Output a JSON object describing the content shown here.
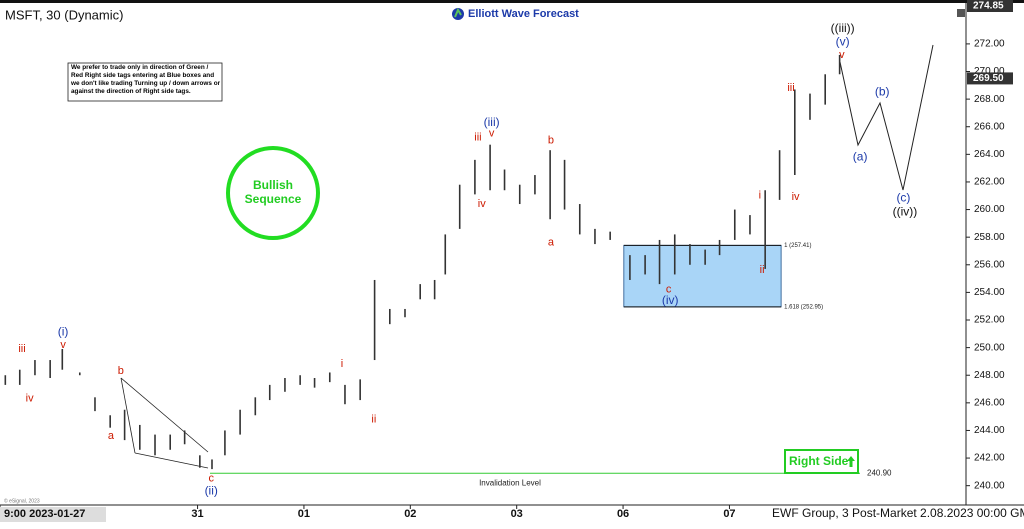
{
  "chart_data": {
    "type": "hilo",
    "title": "MSFT, 30 (Dynamic)",
    "brand": "Elliott Wave Forecast",
    "footer": "EWF Group, 3 Post-Market 2.08.2023 00:00 GMT",
    "copyright": "© eSignal, 2023",
    "note": "We prefer to trade only in direction of Green / Red Right side tags entering at Blue boxes and we don't like trading Turning up / down arrows or against the direction of Right side tags.",
    "badge": [
      "Bullish",
      "Sequence"
    ],
    "right_side": "Right Side",
    "bar_color": "#333333",
    "x": [
      0.7,
      2.6,
      4.6,
      6.6,
      8.2,
      10.5,
      12.5,
      14.5,
      16.4,
      18.4,
      20.4,
      22.4,
      24.3,
      26.3,
      27.9,
      29.6,
      31.6,
      33.6,
      35.5,
      37.5,
      39.5,
      41.4,
      43.4,
      45.4,
      47.4,
      49.3,
      51.3,
      53.3,
      55.3,
      57.2,
      58.6,
      60.5,
      62.5,
      64.5,
      66.4,
      68.4,
      70.4,
      72.4,
      74.3,
      76.3,
      78.3,
      80.3,
      82.9,
      84.9,
      86.8,
      88.8,
      90.8,
      92.8,
      94.7,
      96.7,
      98.7,
      100.7,
      102.6,
      104.6,
      106.6,
      108.6,
      110.5
    ],
    "high": [
      248.0,
      248.4,
      249.1,
      249.1,
      249.9,
      248.2,
      246.4,
      245.1,
      245.5,
      244.4,
      243.7,
      243.7,
      244.0,
      242.2,
      241.9,
      244.0,
      245.5,
      246.4,
      247.3,
      247.8,
      248.0,
      247.8,
      248.2,
      247.3,
      247.7,
      254.9,
      252.8,
      252.8,
      254.6,
      254.9,
      258.2,
      261.8,
      263.6,
      264.7,
      262.9,
      261.8,
      262.5,
      264.3,
      263.6,
      260.4,
      258.6,
      258.4,
      256.7,
      256.7,
      257.8,
      258.2,
      257.5,
      257.1,
      257.8,
      260.0,
      259.6,
      261.4,
      264.3,
      268.7,
      268.4,
      269.8,
      271.2
    ],
    "low": [
      247.3,
      247.3,
      248.0,
      247.8,
      248.4,
      248.0,
      245.4,
      244.2,
      243.3,
      242.6,
      242.2,
      242.6,
      243.0,
      241.3,
      241.2,
      242.2,
      243.7,
      245.1,
      246.2,
      246.8,
      247.3,
      247.1,
      247.5,
      245.9,
      246.2,
      249.1,
      251.7,
      252.2,
      253.5,
      253.5,
      255.3,
      258.6,
      261.1,
      261.4,
      261.4,
      260.4,
      261.1,
      259.3,
      260.0,
      258.2,
      257.5,
      257.8,
      254.9,
      255.3,
      254.6,
      255.3,
      256.0,
      256.0,
      256.7,
      257.8,
      258.2,
      255.7,
      260.7,
      262.5,
      266.5,
      267.6,
      269.8
    ],
    "xlim": [
      0,
      127
    ],
    "ylim": [
      238.6,
      274.6
    ],
    "xticks": [
      {
        "value": 0,
        "label": "9:00 2023-01-27"
      },
      {
        "value": 26,
        "label": "31"
      },
      {
        "value": 40,
        "label": "01"
      },
      {
        "value": 54,
        "label": "02"
      },
      {
        "value": 68,
        "label": "03"
      },
      {
        "value": 82,
        "label": "06"
      },
      {
        "value": 96,
        "label": "07"
      }
    ],
    "yticks": [
      {
        "value": 240,
        "label": "240.00"
      },
      {
        "value": 242,
        "label": "242.00"
      },
      {
        "value": 244,
        "label": "244.00"
      },
      {
        "value": 246,
        "label": "246.00"
      },
      {
        "value": 248,
        "label": "248.00"
      },
      {
        "value": 250,
        "label": "250.00"
      },
      {
        "value": 252,
        "label": "252.00"
      },
      {
        "value": 254,
        "label": "254.00"
      },
      {
        "value": 256,
        "label": "256.00"
      },
      {
        "value": 258,
        "label": "258.00"
      },
      {
        "value": 260,
        "label": "260.00"
      },
      {
        "value": 262,
        "label": "262.00"
      },
      {
        "value": 264,
        "label": "264.00"
      },
      {
        "value": 266,
        "label": "266.00"
      },
      {
        "value": 268,
        "label": "268.00"
      },
      {
        "value": 270,
        "label": "270.00"
      },
      {
        "value": 272,
        "label": "272.00"
      }
    ],
    "price_labels": [
      274.85,
      {
        "value": 269.5,
        "label": "269.50"
      }
    ],
    "box": {
      "xrange": [
        82.1,
        102.8
      ],
      "color": "#a9d5f7",
      "levels": [
        {
          "value": 257.41,
          "label": "1 (257.41)"
        },
        {
          "value": 252.95,
          "label": "1.618 (252.95)"
        }
      ]
    },
    "invalidation": {
      "value": 240.9,
      "label": "240.90",
      "text": "Invalidation Level",
      "color": "#33cc33"
    },
    "annotations": [
      {
        "text": "iii",
        "x": 2.9,
        "y": 249.9,
        "color": "#cc1a00"
      },
      {
        "text": "iv",
        "x": 3.9,
        "y": 246.3,
        "color": "#cc1a00"
      },
      {
        "text": "(i)",
        "x": 8.3,
        "y": 251.1,
        "color": "#1c3aa9"
      },
      {
        "text": "v",
        "x": 8.3,
        "y": 250.2,
        "color": "#cc1a00"
      },
      {
        "text": "b",
        "x": 15.9,
        "y": 248.3,
        "color": "#cc1a00"
      },
      {
        "text": "a",
        "x": 14.6,
        "y": 243.6,
        "color": "#cc1a00"
      },
      {
        "text": "c",
        "x": 27.8,
        "y": 240.5,
        "color": "#cc1a00"
      },
      {
        "text": "(ii)",
        "x": 27.8,
        "y": 239.6,
        "color": "#1c3aa9"
      },
      {
        "text": "i",
        "x": 45.0,
        "y": 248.8,
        "color": "#cc1a00"
      },
      {
        "text": "ii",
        "x": 49.2,
        "y": 244.8,
        "color": "#cc1a00"
      },
      {
        "text": "iii",
        "x": 62.9,
        "y": 265.2,
        "color": "#cc1a00"
      },
      {
        "text": "(iii)",
        "x": 64.7,
        "y": 266.3,
        "color": "#1c3aa9"
      },
      {
        "text": "v",
        "x": 64.7,
        "y": 265.5,
        "color": "#cc1a00"
      },
      {
        "text": "iv",
        "x": 63.4,
        "y": 260.4,
        "color": "#cc1a00"
      },
      {
        "text": "b",
        "x": 72.5,
        "y": 265.0,
        "color": "#cc1a00"
      },
      {
        "text": "a",
        "x": 72.5,
        "y": 257.6,
        "color": "#cc1a00"
      },
      {
        "text": "c",
        "x": 88.0,
        "y": 254.2,
        "color": "#cc1a00"
      },
      {
        "text": "(iv)",
        "x": 88.2,
        "y": 253.4,
        "color": "#1c3aa9"
      },
      {
        "text": "i",
        "x": 100.0,
        "y": 261.0,
        "color": "#cc1a00"
      },
      {
        "text": "ii",
        "x": 100.3,
        "y": 255.6,
        "color": "#cc1a00"
      },
      {
        "text": "iii",
        "x": 104.1,
        "y": 268.8,
        "color": "#cc1a00"
      },
      {
        "text": "iv",
        "x": 104.7,
        "y": 260.9,
        "color": "#cc1a00"
      },
      {
        "text": "v",
        "x": 110.8,
        "y": 271.2,
        "color": "#cc1a00"
      },
      {
        "text": "(v)",
        "x": 110.9,
        "y": 272.1,
        "color": "#1c3aa9"
      },
      {
        "text": "((iii))",
        "x": 110.9,
        "y": 273.1,
        "color": "#111111"
      },
      {
        "text": "(a)",
        "x": 113.2,
        "y": 263.8,
        "color": "#1c3aa9"
      },
      {
        "text": "(b)",
        "x": 116.1,
        "y": 268.5,
        "color": "#1c3aa9"
      },
      {
        "text": "(c)",
        "x": 118.9,
        "y": 260.8,
        "color": "#1c3aa9"
      },
      {
        "text": "((iv))",
        "x": 119.1,
        "y": 259.8,
        "color": "#111111"
      }
    ]
  }
}
